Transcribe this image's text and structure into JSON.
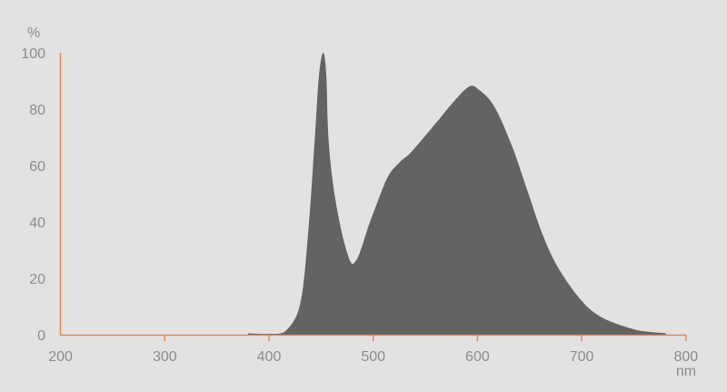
{
  "chart_data": {
    "type": "area",
    "title": "",
    "xlabel": "nm",
    "ylabel": "%",
    "xlim": [
      200,
      800
    ],
    "ylim": [
      0,
      100
    ],
    "xticks": [
      200,
      300,
      400,
      500,
      600,
      700,
      800
    ],
    "yticks": [
      0,
      20,
      40,
      60,
      80,
      100
    ],
    "grid": false,
    "colors": {
      "fill": "#636363",
      "axis": "#e0895a",
      "text": "#8c8c8c",
      "background": "#e3e2e0"
    },
    "x": [
      380,
      400,
      415,
      430,
      438,
      444,
      448,
      452,
      455,
      457,
      462,
      470,
      478,
      483,
      488,
      495,
      502,
      514,
      525,
      537,
      560,
      578,
      592,
      601,
      616,
      633,
      648,
      662,
      677,
      700,
      720,
      749,
      765,
      781
    ],
    "y": [
      0.5,
      0.3,
      1,
      11,
      38,
      70,
      92,
      100,
      92,
      70,
      52,
      36,
      26,
      26,
      30,
      38,
      45,
      56,
      61,
      65,
      75,
      83,
      88,
      87,
      81,
      67,
      51,
      36,
      24,
      12,
      6,
      2,
      1,
      0.5
    ]
  }
}
